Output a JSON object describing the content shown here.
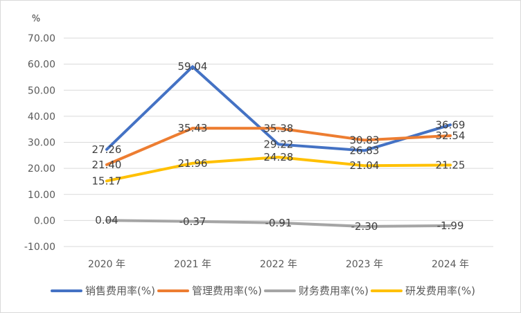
{
  "chart_data": {
    "type": "line",
    "title": "",
    "xlabel": "",
    "ylabel": "",
    "y_unit": "%",
    "categories": [
      "2020 年",
      "2021 年",
      "2022 年",
      "2023 年",
      "2024 年"
    ],
    "ylim": [
      -10,
      70
    ],
    "y_ticks": [
      -10,
      0,
      10,
      20,
      30,
      40,
      50,
      60,
      70
    ],
    "y_tick_labels": [
      "-10.00",
      "0.00",
      "10.00",
      "20.00",
      "30.00",
      "40.00",
      "50.00",
      "60.00",
      "70.00"
    ],
    "grid": "horizontal",
    "legend_position": "bottom",
    "series": [
      {
        "name": "销售费用率(%)",
        "color": "#4472C4",
        "values": [
          27.26,
          59.04,
          29.22,
          26.83,
          36.69
        ],
        "labels": [
          "27.26",
          "59.04",
          "29.22",
          "26.83",
          "36.69"
        ]
      },
      {
        "name": "管理费用率(%)",
        "color": "#ED7D31",
        "values": [
          21.4,
          35.43,
          35.38,
          30.83,
          32.54
        ],
        "labels": [
          "21.40",
          "35.43",
          "35.38",
          "30.83",
          "32.54"
        ]
      },
      {
        "name": "财务费用率(%)",
        "color": "#A5A5A5",
        "values": [
          0.04,
          -0.37,
          -0.91,
          -2.3,
          -1.99
        ],
        "labels": [
          "0.04",
          "-0.37",
          "-0.91",
          "-2.30",
          "-1.99"
        ]
      },
      {
        "name": "研发费用率(%)",
        "color": "#FFC000",
        "values": [
          15.17,
          21.96,
          24.28,
          21.04,
          21.25
        ],
        "labels": [
          "15.17",
          "21.96",
          "24.28",
          "21.04",
          "21.25"
        ]
      }
    ]
  }
}
